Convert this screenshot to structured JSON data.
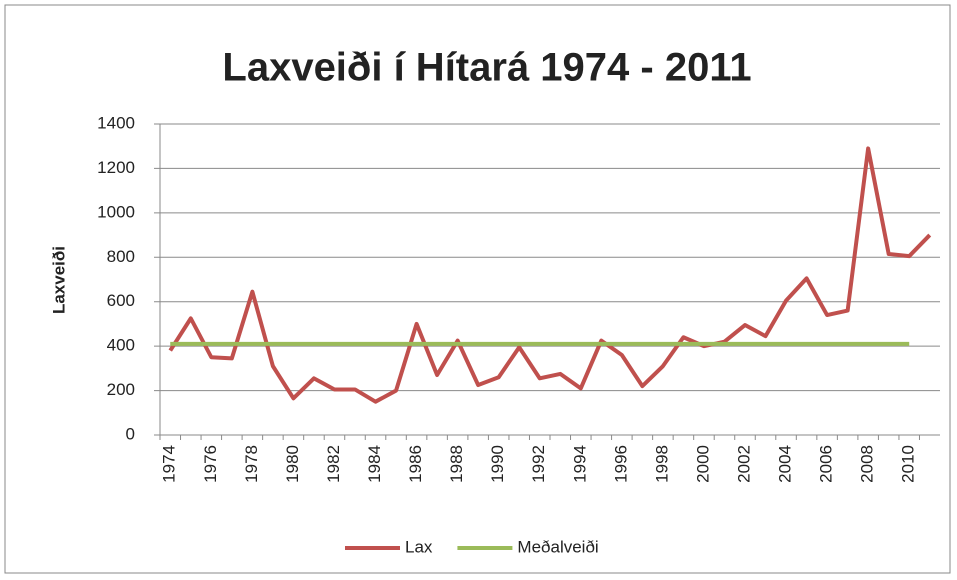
{
  "chart_data": {
    "type": "line",
    "title": "Laxveiði í Hítará 1974 - 2011",
    "y_label": "Laxveiði",
    "categories": [
      "1974",
      null,
      "1976",
      null,
      "1978",
      null,
      "1980",
      null,
      "1982",
      null,
      "1984",
      null,
      "1986",
      null,
      "1988",
      null,
      "1990",
      null,
      "1992",
      null,
      "1994",
      null,
      "1996",
      null,
      "1998",
      null,
      "2000",
      null,
      "2002",
      null,
      "2004",
      null,
      "2006",
      null,
      "2008",
      null,
      "2010",
      null
    ],
    "series": [
      {
        "name": "Lax",
        "color": "#c0504d",
        "values": [
          380,
          525,
          350,
          345,
          645,
          310,
          165,
          255,
          205,
          205,
          150,
          200,
          500,
          270,
          425,
          225,
          260,
          395,
          255,
          275,
          210,
          425,
          360,
          220,
          310,
          440,
          400,
          420,
          495,
          445,
          605,
          705,
          540,
          560,
          1290,
          815,
          805,
          900
        ]
      },
      {
        "name": "Meðalveiði",
        "color": "#9bbb59",
        "values": [
          410,
          410,
          410,
          410,
          410,
          410,
          410,
          410,
          410,
          410,
          410,
          410,
          410,
          410,
          410,
          410,
          410,
          410,
          410,
          410,
          410,
          410,
          410,
          410,
          410,
          410,
          410,
          410,
          410,
          410,
          410,
          410,
          410,
          410,
          410,
          410,
          410,
          null
        ]
      }
    ],
    "ylim": [
      0,
      1400
    ],
    "yticks": [
      0,
      200,
      400,
      600,
      800,
      1000,
      1200,
      1400
    ],
    "grid": true,
    "legend": "bottom"
  }
}
